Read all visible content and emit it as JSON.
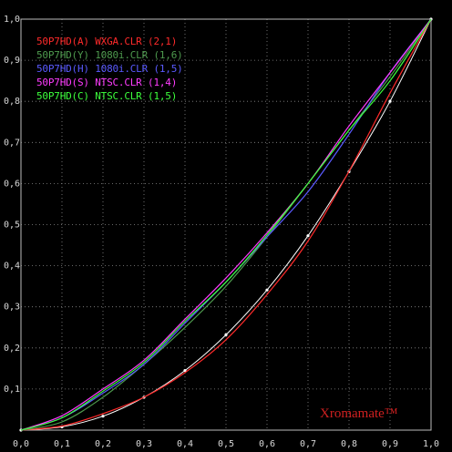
{
  "chart_data": {
    "type": "line",
    "title": "",
    "xlabel": "",
    "ylabel": "",
    "xlim": [
      0,
      1
    ],
    "ylim": [
      0,
      1
    ],
    "grid": true,
    "legend_placement": "top-left",
    "x_ticks": [
      "0,0",
      "0,1",
      "0,2",
      "0,3",
      "0,4",
      "0,5",
      "0,6",
      "0,7",
      "0,8",
      "0,9",
      "1,0"
    ],
    "y_ticks": [
      "0,0",
      "0,1",
      "0,2",
      "0,3",
      "0,4",
      "0,5",
      "0,6",
      "0,7",
      "0,8",
      "0,9",
      "1,0"
    ],
    "watermark": "Xromamate™",
    "reference": {
      "color": "#ffffff",
      "x": [
        0,
        0.1,
        0.2,
        0.3,
        0.4,
        0.5,
        0.6,
        0.7,
        0.8,
        0.9,
        1.0
      ],
      "y": [
        0,
        0.008,
        0.034,
        0.08,
        0.145,
        0.232,
        0.341,
        0.473,
        0.629,
        0.8,
        1.0
      ]
    },
    "series": [
      {
        "name": "50P7HD(A) WXGA.CLR (2,1)",
        "color": "#ff2a2a",
        "x": [
          0,
          0.1,
          0.2,
          0.3,
          0.4,
          0.5,
          0.6,
          0.7,
          0.8,
          0.9,
          1.0
        ],
        "y": [
          0,
          0.01,
          0.04,
          0.08,
          0.14,
          0.22,
          0.33,
          0.46,
          0.63,
          0.82,
          1.0
        ]
      },
      {
        "name": "50P7HD(Y) 1080i.CLR (1,6)",
        "color": "#4e9a4e",
        "x": [
          0,
          0.1,
          0.2,
          0.3,
          0.4,
          0.5,
          0.6,
          0.7,
          0.8,
          0.9,
          1.0
        ],
        "y": [
          0,
          0.02,
          0.08,
          0.16,
          0.25,
          0.35,
          0.47,
          0.6,
          0.73,
          0.86,
          1.0
        ]
      },
      {
        "name": "50P7HD(H) 1080i.CLR (1,5)",
        "color": "#5a5aff",
        "x": [
          0,
          0.1,
          0.2,
          0.3,
          0.4,
          0.5,
          0.6,
          0.7,
          0.8,
          0.9,
          1.0
        ],
        "y": [
          0,
          0.03,
          0.09,
          0.16,
          0.26,
          0.36,
          0.47,
          0.58,
          0.72,
          0.87,
          1.0
        ]
      },
      {
        "name": "50P7HD(S) NTSC.CLR (1,4)",
        "color": "#ff3cff",
        "x": [
          0,
          0.1,
          0.2,
          0.3,
          0.4,
          0.5,
          0.6,
          0.7,
          0.8,
          0.9,
          1.0
        ],
        "y": [
          0,
          0.035,
          0.1,
          0.17,
          0.27,
          0.37,
          0.48,
          0.6,
          0.74,
          0.87,
          1.0
        ]
      },
      {
        "name": "50P7HD(C) NTSC.CLR (1,5)",
        "color": "#3cff3c",
        "x": [
          0,
          0.1,
          0.2,
          0.3,
          0.4,
          0.5,
          0.6,
          0.7,
          0.8,
          0.9,
          1.0
        ],
        "y": [
          0,
          0.03,
          0.095,
          0.165,
          0.265,
          0.36,
          0.475,
          0.6,
          0.73,
          0.85,
          1.0
        ]
      }
    ]
  }
}
